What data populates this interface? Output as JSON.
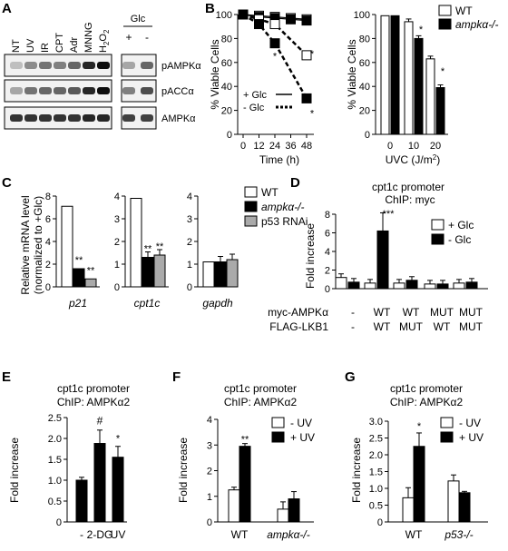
{
  "panels": {
    "A": {
      "letter": "A",
      "lanes_left": [
        "NT",
        "UV",
        "IR",
        "CPT",
        "Adr",
        "MNNG",
        "H2O2"
      ],
      "glc_header": "Glc",
      "glc_signs": [
        "+",
        "-"
      ],
      "blots": [
        "pAMPKα",
        "pACCα",
        "AMPKα"
      ]
    },
    "B": {
      "letter": "B",
      "legend_wt": "WT",
      "legend_ko": "ampkα-/-"
    },
    "C": {
      "letter": "C",
      "legend": [
        "WT",
        "ampkα-/-",
        "p53 RNAi"
      ]
    },
    "D": {
      "letter": "D",
      "title1": "cpt1c promoter",
      "title2": "ChIP: myc",
      "legend": [
        "+ Glc",
        "- Glc"
      ]
    },
    "E": {
      "letter": "E",
      "title1": "cpt1c promoter",
      "title2": "ChIP: AMPKα2"
    },
    "F": {
      "letter": "F",
      "title1": "cpt1c promoter",
      "title2": "ChIP: AMPKα2",
      "legend": [
        "- UV",
        "+ UV"
      ]
    },
    "G": {
      "letter": "G",
      "title1": "cpt1c promoter",
      "title2": "ChIP: AMPKα2",
      "legend": [
        "- UV",
        "+ UV"
      ]
    }
  },
  "chart_data": [
    {
      "id": "B-left",
      "type": "line",
      "x": [
        0,
        12,
        24,
        36,
        48
      ],
      "xlabel": "Time (h)",
      "ylabel": "% Viable Cells",
      "ylim": [
        0,
        100
      ],
      "xticks": [
        "0",
        "12",
        "24",
        "36",
        "48"
      ],
      "yticks": [
        "0",
        "20",
        "40",
        "60",
        "80",
        "100"
      ],
      "series": [
        {
          "name": "WT + Glc",
          "values": [
            100,
            99,
            98,
            97,
            96
          ],
          "marker": "open-square",
          "line": "solid"
        },
        {
          "name": "ampkα-/- + Glc",
          "values": [
            100,
            98,
            97,
            96,
            95
          ],
          "marker": "filled-square",
          "line": "solid"
        },
        {
          "name": "WT - Glc",
          "values": [
            100,
            96,
            92,
            null,
            66
          ],
          "marker": "open-square",
          "line": "dashed"
        },
        {
          "name": "ampkα-/- - Glc",
          "values": [
            100,
            92,
            76,
            null,
            30
          ],
          "marker": "filled-square",
          "line": "dashed"
        }
      ],
      "legend": [
        "+ Glc",
        "- Glc"
      ],
      "annotations": [
        "*",
        "*",
        "*"
      ]
    },
    {
      "id": "B-right",
      "type": "bar",
      "categories": [
        "0",
        "10",
        "20"
      ],
      "xlabel": "UVC (J/m2)",
      "ylabel": "% Viable Cells",
      "ylim": [
        0,
        100
      ],
      "yticks": [
        "0",
        "20",
        "40",
        "60",
        "80",
        "100"
      ],
      "series": [
        {
          "name": "WT",
          "values": [
            99,
            94,
            63
          ]
        },
        {
          "name": "ampkα-/-",
          "values": [
            99,
            80,
            39
          ]
        }
      ],
      "annotations": [
        "*",
        "*"
      ]
    },
    {
      "id": "C",
      "type": "bar",
      "ylabel": "Relative mRNA level (normalized to +Glc)",
      "subcharts": [
        {
          "gene": "p21",
          "ylim": [
            0,
            8
          ],
          "yticks": [
            "0",
            "2",
            "4",
            "6",
            "8"
          ],
          "values": [
            7.1,
            1.6,
            0.7
          ],
          "annotations": [
            "**",
            "**"
          ]
        },
        {
          "gene": "cpt1c",
          "ylim": [
            0,
            4
          ],
          "yticks": [
            "0",
            "1",
            "2",
            "3",
            "4"
          ],
          "values": [
            3.9,
            1.3,
            1.4
          ],
          "annotations": [
            "**",
            "**"
          ]
        },
        {
          "gene": "gapdh",
          "ylim": [
            0,
            4
          ],
          "yticks": [
            "0",
            "1",
            "2",
            "3",
            "4"
          ],
          "values": [
            1.1,
            1.1,
            1.2
          ],
          "annotations": []
        }
      ],
      "legend": [
        "WT",
        "ampkα-/-",
        "p53 RNAi"
      ]
    },
    {
      "id": "D",
      "type": "bar",
      "ylabel": "Fold increase",
      "ylim": [
        0,
        8
      ],
      "yticks": [
        "0",
        "2",
        "4",
        "6",
        "8"
      ],
      "row_labels": [
        "myc-AMPKα",
        "FLAG-LKB1"
      ],
      "categories": [
        [
          "-",
          "-"
        ],
        [
          "WT",
          "WT"
        ],
        [
          "WT",
          "MUT"
        ],
        [
          "MUT",
          "WT"
        ],
        [
          "MUT",
          "MUT"
        ]
      ],
      "series": [
        {
          "name": "+ Glc",
          "values": [
            1.2,
            0.6,
            0.6,
            0.5,
            0.6
          ]
        },
        {
          "name": "- Glc",
          "values": [
            0.7,
            6.2,
            0.9,
            0.5,
            0.7
          ]
        }
      ],
      "annotations": [
        "***"
      ]
    },
    {
      "id": "E",
      "type": "bar",
      "ylabel": "Fold increase",
      "ylim": [
        0,
        2.5
      ],
      "yticks": [
        "0",
        "0.5",
        "1.0",
        "1.5",
        "2.0",
        "2.5"
      ],
      "categories": [
        "-",
        "2-DG",
        "UV"
      ],
      "values": [
        1.0,
        1.88,
        1.55
      ],
      "annotations": [
        "#",
        "*"
      ]
    },
    {
      "id": "F",
      "type": "bar",
      "ylabel": "Fold increase",
      "ylim": [
        0,
        4
      ],
      "yticks": [
        "0",
        "1",
        "2",
        "3",
        "4"
      ],
      "categories": [
        "WT",
        "ampkα-/-"
      ],
      "series": [
        {
          "name": "- UV",
          "values": [
            1.25,
            0.5
          ]
        },
        {
          "name": "+ UV",
          "values": [
            2.95,
            0.9
          ]
        }
      ],
      "annotations": [
        "**"
      ]
    },
    {
      "id": "G",
      "type": "bar",
      "ylabel": "Fold increase",
      "ylim": [
        0,
        3
      ],
      "yticks": [
        "0",
        "0.5",
        "1.0",
        "1.5",
        "2.0",
        "2.5",
        "3.0"
      ],
      "categories": [
        "WT",
        "p53-/-"
      ],
      "series": [
        {
          "name": "- UV",
          "values": [
            0.72,
            1.22
          ]
        },
        {
          "name": "+ UV",
          "values": [
            2.25,
            0.87
          ]
        }
      ],
      "annotations": [
        "*"
      ]
    }
  ]
}
